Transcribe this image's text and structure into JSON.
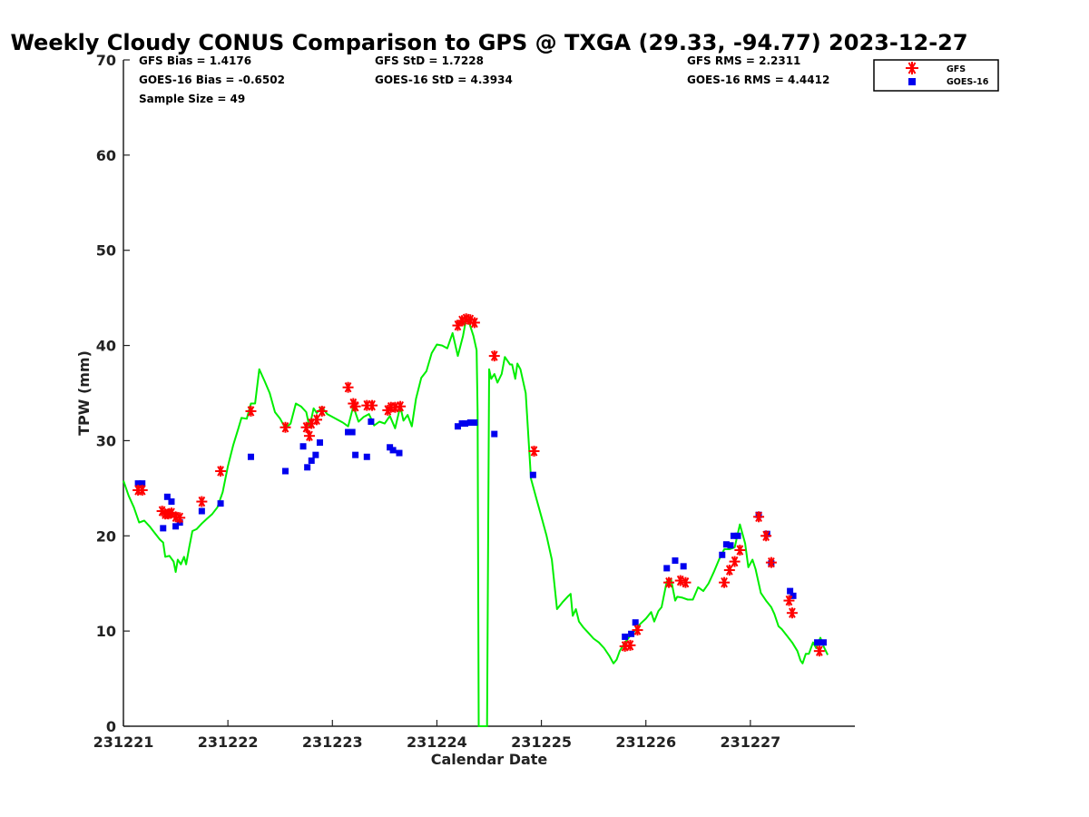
{
  "chart_data": {
    "type": "scatter",
    "title": "Weekly Cloudy CONUS Comparison to GPS @ TXGA (29.33, -94.77) 2023-12-27",
    "xlabel": "Calendar Date",
    "ylabel": "TPW (mm)",
    "xlim": [
      0,
      7
    ],
    "ylim": [
      0,
      70
    ],
    "x_ticks": [
      0,
      1,
      2,
      3,
      4,
      5,
      6
    ],
    "x_tick_labels": [
      "231221",
      "231222",
      "231223",
      "231224",
      "231225",
      "231226",
      "231227"
    ],
    "y_ticks": [
      0,
      10,
      20,
      30,
      40,
      50,
      60,
      70
    ],
    "grid": false,
    "legend_position": "top-right",
    "stats": {
      "gfs_bias": "GFS Bias = 1.4176",
      "goes_bias": "GOES-16 Bias = -0.6502",
      "sample_size": "Sample Size = 49",
      "gfs_std": "GFS StD = 1.7228",
      "goes_std": "GOES-16 StD = 4.3934",
      "gfs_rms": "GFS RMS = 2.2311",
      "goes_rms": "GOES-16 RMS = 4.4412"
    },
    "gps_line": {
      "color": "#00ee00",
      "points": [
        [
          0.0,
          25.8
        ],
        [
          0.05,
          24.2
        ],
        [
          0.1,
          23.0
        ],
        [
          0.15,
          21.4
        ],
        [
          0.2,
          21.6
        ],
        [
          0.25,
          21.0
        ],
        [
          0.3,
          20.3
        ],
        [
          0.35,
          19.6
        ],
        [
          0.38,
          19.3
        ],
        [
          0.4,
          17.8
        ],
        [
          0.44,
          17.9
        ],
        [
          0.48,
          17.3
        ],
        [
          0.5,
          16.2
        ],
        [
          0.52,
          17.5
        ],
        [
          0.55,
          17.0
        ],
        [
          0.58,
          17.8
        ],
        [
          0.6,
          17.0
        ],
        [
          0.63,
          18.8
        ],
        [
          0.66,
          20.5
        ],
        [
          0.7,
          20.7
        ],
        [
          0.75,
          21.3
        ],
        [
          0.8,
          21.8
        ],
        [
          0.85,
          22.3
        ],
        [
          0.9,
          23.0
        ],
        [
          0.95,
          24.6
        ],
        [
          1.0,
          27.3
        ],
        [
          1.05,
          29.5
        ],
        [
          1.1,
          31.3
        ],
        [
          1.13,
          32.4
        ],
        [
          1.18,
          32.3
        ],
        [
          1.22,
          33.9
        ],
        [
          1.26,
          33.9
        ],
        [
          1.3,
          37.5
        ],
        [
          1.35,
          36.3
        ],
        [
          1.4,
          35.0
        ],
        [
          1.45,
          33.0
        ],
        [
          1.5,
          32.3
        ],
        [
          1.55,
          31.3
        ],
        [
          1.6,
          31.8
        ],
        [
          1.65,
          33.9
        ],
        [
          1.7,
          33.6
        ],
        [
          1.75,
          33.0
        ],
        [
          1.78,
          31.4
        ],
        [
          1.82,
          33.4
        ],
        [
          1.85,
          32.9
        ],
        [
          1.9,
          33.5
        ],
        [
          1.95,
          32.8
        ],
        [
          2.0,
          32.5
        ],
        [
          2.05,
          32.2
        ],
        [
          2.1,
          31.9
        ],
        [
          2.15,
          31.5
        ],
        [
          2.2,
          33.6
        ],
        [
          2.25,
          32.0
        ],
        [
          2.3,
          32.5
        ],
        [
          2.35,
          32.8
        ],
        [
          2.4,
          31.6
        ],
        [
          2.45,
          32.0
        ],
        [
          2.5,
          31.8
        ],
        [
          2.55,
          32.6
        ],
        [
          2.6,
          31.3
        ],
        [
          2.65,
          33.6
        ],
        [
          2.68,
          32.1
        ],
        [
          2.72,
          32.7
        ],
        [
          2.76,
          31.5
        ],
        [
          2.8,
          34.4
        ],
        [
          2.85,
          36.6
        ],
        [
          2.9,
          37.3
        ],
        [
          2.95,
          39.2
        ],
        [
          3.0,
          40.1
        ],
        [
          3.05,
          40.0
        ],
        [
          3.1,
          39.7
        ],
        [
          3.15,
          41.3
        ],
        [
          3.2,
          38.9
        ],
        [
          3.25,
          41.0
        ],
        [
          3.28,
          42.8
        ],
        [
          3.3,
          42.7
        ],
        [
          3.35,
          41.0
        ],
        [
          3.38,
          39.5
        ],
        [
          3.39,
          33.0
        ],
        [
          3.4,
          0
        ],
        [
          3.48,
          0
        ],
        [
          3.5,
          37.5
        ],
        [
          3.52,
          36.5
        ],
        [
          3.55,
          37.0
        ],
        [
          3.58,
          36.1
        ],
        [
          3.62,
          37.0
        ],
        [
          3.65,
          38.8
        ],
        [
          3.7,
          38.0
        ],
        [
          3.72,
          38.0
        ],
        [
          3.75,
          36.5
        ],
        [
          3.77,
          38.1
        ],
        [
          3.8,
          37.5
        ],
        [
          3.85,
          35.0
        ],
        [
          3.9,
          26.0
        ],
        [
          3.95,
          24.0
        ],
        [
          4.0,
          22.0
        ],
        [
          4.05,
          20.0
        ],
        [
          4.1,
          17.5
        ],
        [
          4.15,
          12.3
        ],
        [
          4.2,
          13.0
        ],
        [
          4.25,
          13.6
        ],
        [
          4.28,
          13.9
        ],
        [
          4.3,
          11.6
        ],
        [
          4.33,
          12.3
        ],
        [
          4.36,
          11.0
        ],
        [
          4.4,
          10.4
        ],
        [
          4.45,
          9.8
        ],
        [
          4.5,
          9.2
        ],
        [
          4.55,
          8.8
        ],
        [
          4.6,
          8.2
        ],
        [
          4.65,
          7.4
        ],
        [
          4.69,
          6.6
        ],
        [
          4.72,
          7.0
        ],
        [
          4.75,
          7.9
        ],
        [
          4.8,
          8.8
        ],
        [
          4.85,
          9.5
        ],
        [
          4.9,
          10.1
        ],
        [
          4.95,
          10.8
        ],
        [
          5.0,
          11.3
        ],
        [
          5.05,
          12.0
        ],
        [
          5.08,
          11.0
        ],
        [
          5.12,
          12.1
        ],
        [
          5.15,
          12.5
        ],
        [
          5.2,
          15.2
        ],
        [
          5.24,
          15.5
        ],
        [
          5.28,
          13.2
        ],
        [
          5.3,
          13.6
        ],
        [
          5.35,
          13.5
        ],
        [
          5.4,
          13.3
        ],
        [
          5.45,
          13.3
        ],
        [
          5.5,
          14.6
        ],
        [
          5.55,
          14.2
        ],
        [
          5.6,
          15.0
        ],
        [
          5.65,
          16.2
        ],
        [
          5.7,
          17.5
        ],
        [
          5.75,
          18.6
        ],
        [
          5.8,
          18.6
        ],
        [
          5.85,
          18.8
        ],
        [
          5.9,
          21.2
        ],
        [
          5.95,
          19.2
        ],
        [
          5.98,
          16.7
        ],
        [
          6.02,
          17.5
        ],
        [
          6.05,
          16.5
        ],
        [
          6.1,
          14.0
        ],
        [
          6.15,
          13.2
        ],
        [
          6.2,
          12.5
        ],
        [
          6.23,
          11.8
        ],
        [
          6.27,
          10.5
        ],
        [
          6.3,
          10.2
        ],
        [
          6.35,
          9.5
        ],
        [
          6.4,
          8.8
        ],
        [
          6.45,
          7.9
        ],
        [
          6.48,
          6.9
        ],
        [
          6.5,
          6.6
        ],
        [
          6.53,
          7.6
        ],
        [
          6.56,
          7.6
        ],
        [
          6.6,
          8.8
        ],
        [
          6.63,
          8.2
        ],
        [
          6.67,
          9.3
        ],
        [
          6.7,
          8.4
        ],
        [
          6.74,
          7.5
        ]
      ]
    },
    "series": [
      {
        "name": "GFS",
        "marker": "asterisk",
        "color": "#ff0000",
        "points": [
          [
            0.14,
            24.8
          ],
          [
            0.18,
            24.8
          ],
          [
            0.37,
            22.6
          ],
          [
            0.4,
            22.3
          ],
          [
            0.43,
            22.3
          ],
          [
            0.46,
            22.4
          ],
          [
            0.5,
            22.0
          ],
          [
            0.54,
            21.9
          ],
          [
            0.75,
            23.6
          ],
          [
            0.93,
            26.8
          ],
          [
            1.22,
            33.1
          ],
          [
            1.55,
            31.4
          ],
          [
            1.75,
            31.4
          ],
          [
            1.78,
            30.5
          ],
          [
            1.8,
            31.8
          ],
          [
            1.85,
            32.2
          ],
          [
            1.9,
            33.1
          ],
          [
            2.15,
            35.6
          ],
          [
            2.2,
            33.9
          ],
          [
            2.22,
            33.6
          ],
          [
            2.33,
            33.7
          ],
          [
            2.38,
            33.7
          ],
          [
            2.53,
            33.2
          ],
          [
            2.56,
            33.5
          ],
          [
            2.6,
            33.5
          ],
          [
            2.65,
            33.6
          ],
          [
            3.2,
            42.1
          ],
          [
            3.24,
            42.6
          ],
          [
            3.28,
            42.8
          ],
          [
            3.32,
            42.7
          ],
          [
            3.36,
            42.4
          ],
          [
            3.55,
            38.9
          ],
          [
            3.93,
            28.9
          ],
          [
            4.8,
            8.4
          ],
          [
            4.85,
            8.5
          ],
          [
            4.92,
            10.1
          ],
          [
            5.22,
            15.1
          ],
          [
            5.33,
            15.3
          ],
          [
            5.38,
            15.1
          ],
          [
            5.75,
            15.1
          ],
          [
            5.8,
            16.4
          ],
          [
            5.85,
            17.3
          ],
          [
            5.9,
            18.5
          ],
          [
            6.08,
            22.0
          ],
          [
            6.15,
            20.0
          ],
          [
            6.2,
            17.2
          ],
          [
            6.37,
            13.2
          ],
          [
            6.4,
            11.9
          ],
          [
            6.66,
            7.9
          ]
        ]
      },
      {
        "name": "GOES-16",
        "marker": "square",
        "color": "#0000ee",
        "points": [
          [
            0.14,
            25.5
          ],
          [
            0.18,
            25.5
          ],
          [
            0.38,
            20.8
          ],
          [
            0.42,
            24.1
          ],
          [
            0.46,
            23.6
          ],
          [
            0.5,
            21.0
          ],
          [
            0.54,
            21.4
          ],
          [
            0.75,
            22.6
          ],
          [
            0.93,
            23.4
          ],
          [
            1.22,
            28.3
          ],
          [
            1.55,
            26.8
          ],
          [
            1.72,
            29.4
          ],
          [
            1.76,
            27.2
          ],
          [
            1.8,
            27.9
          ],
          [
            1.84,
            28.5
          ],
          [
            1.88,
            29.8
          ],
          [
            2.15,
            30.9
          ],
          [
            2.19,
            30.9
          ],
          [
            2.22,
            28.5
          ],
          [
            2.33,
            28.3
          ],
          [
            2.37,
            32.0
          ],
          [
            2.55,
            29.3
          ],
          [
            2.58,
            29.0
          ],
          [
            2.64,
            28.7
          ],
          [
            3.2,
            31.5
          ],
          [
            3.24,
            31.8
          ],
          [
            3.27,
            31.8
          ],
          [
            3.32,
            31.9
          ],
          [
            3.36,
            31.9
          ],
          [
            3.55,
            30.7
          ],
          [
            3.92,
            26.4
          ],
          [
            4.8,
            9.4
          ],
          [
            4.86,
            9.7
          ],
          [
            4.9,
            10.9
          ],
          [
            5.2,
            16.6
          ],
          [
            5.28,
            17.4
          ],
          [
            5.36,
            16.8
          ],
          [
            5.73,
            18.0
          ],
          [
            5.77,
            19.1
          ],
          [
            5.81,
            19.0
          ],
          [
            5.84,
            20.0
          ],
          [
            5.88,
            20.0
          ],
          [
            6.08,
            22.2
          ],
          [
            6.16,
            20.2
          ],
          [
            6.2,
            17.1
          ],
          [
            6.38,
            14.2
          ],
          [
            6.41,
            13.7
          ],
          [
            6.64,
            8.8
          ],
          [
            6.7,
            8.8
          ]
        ]
      }
    ]
  }
}
